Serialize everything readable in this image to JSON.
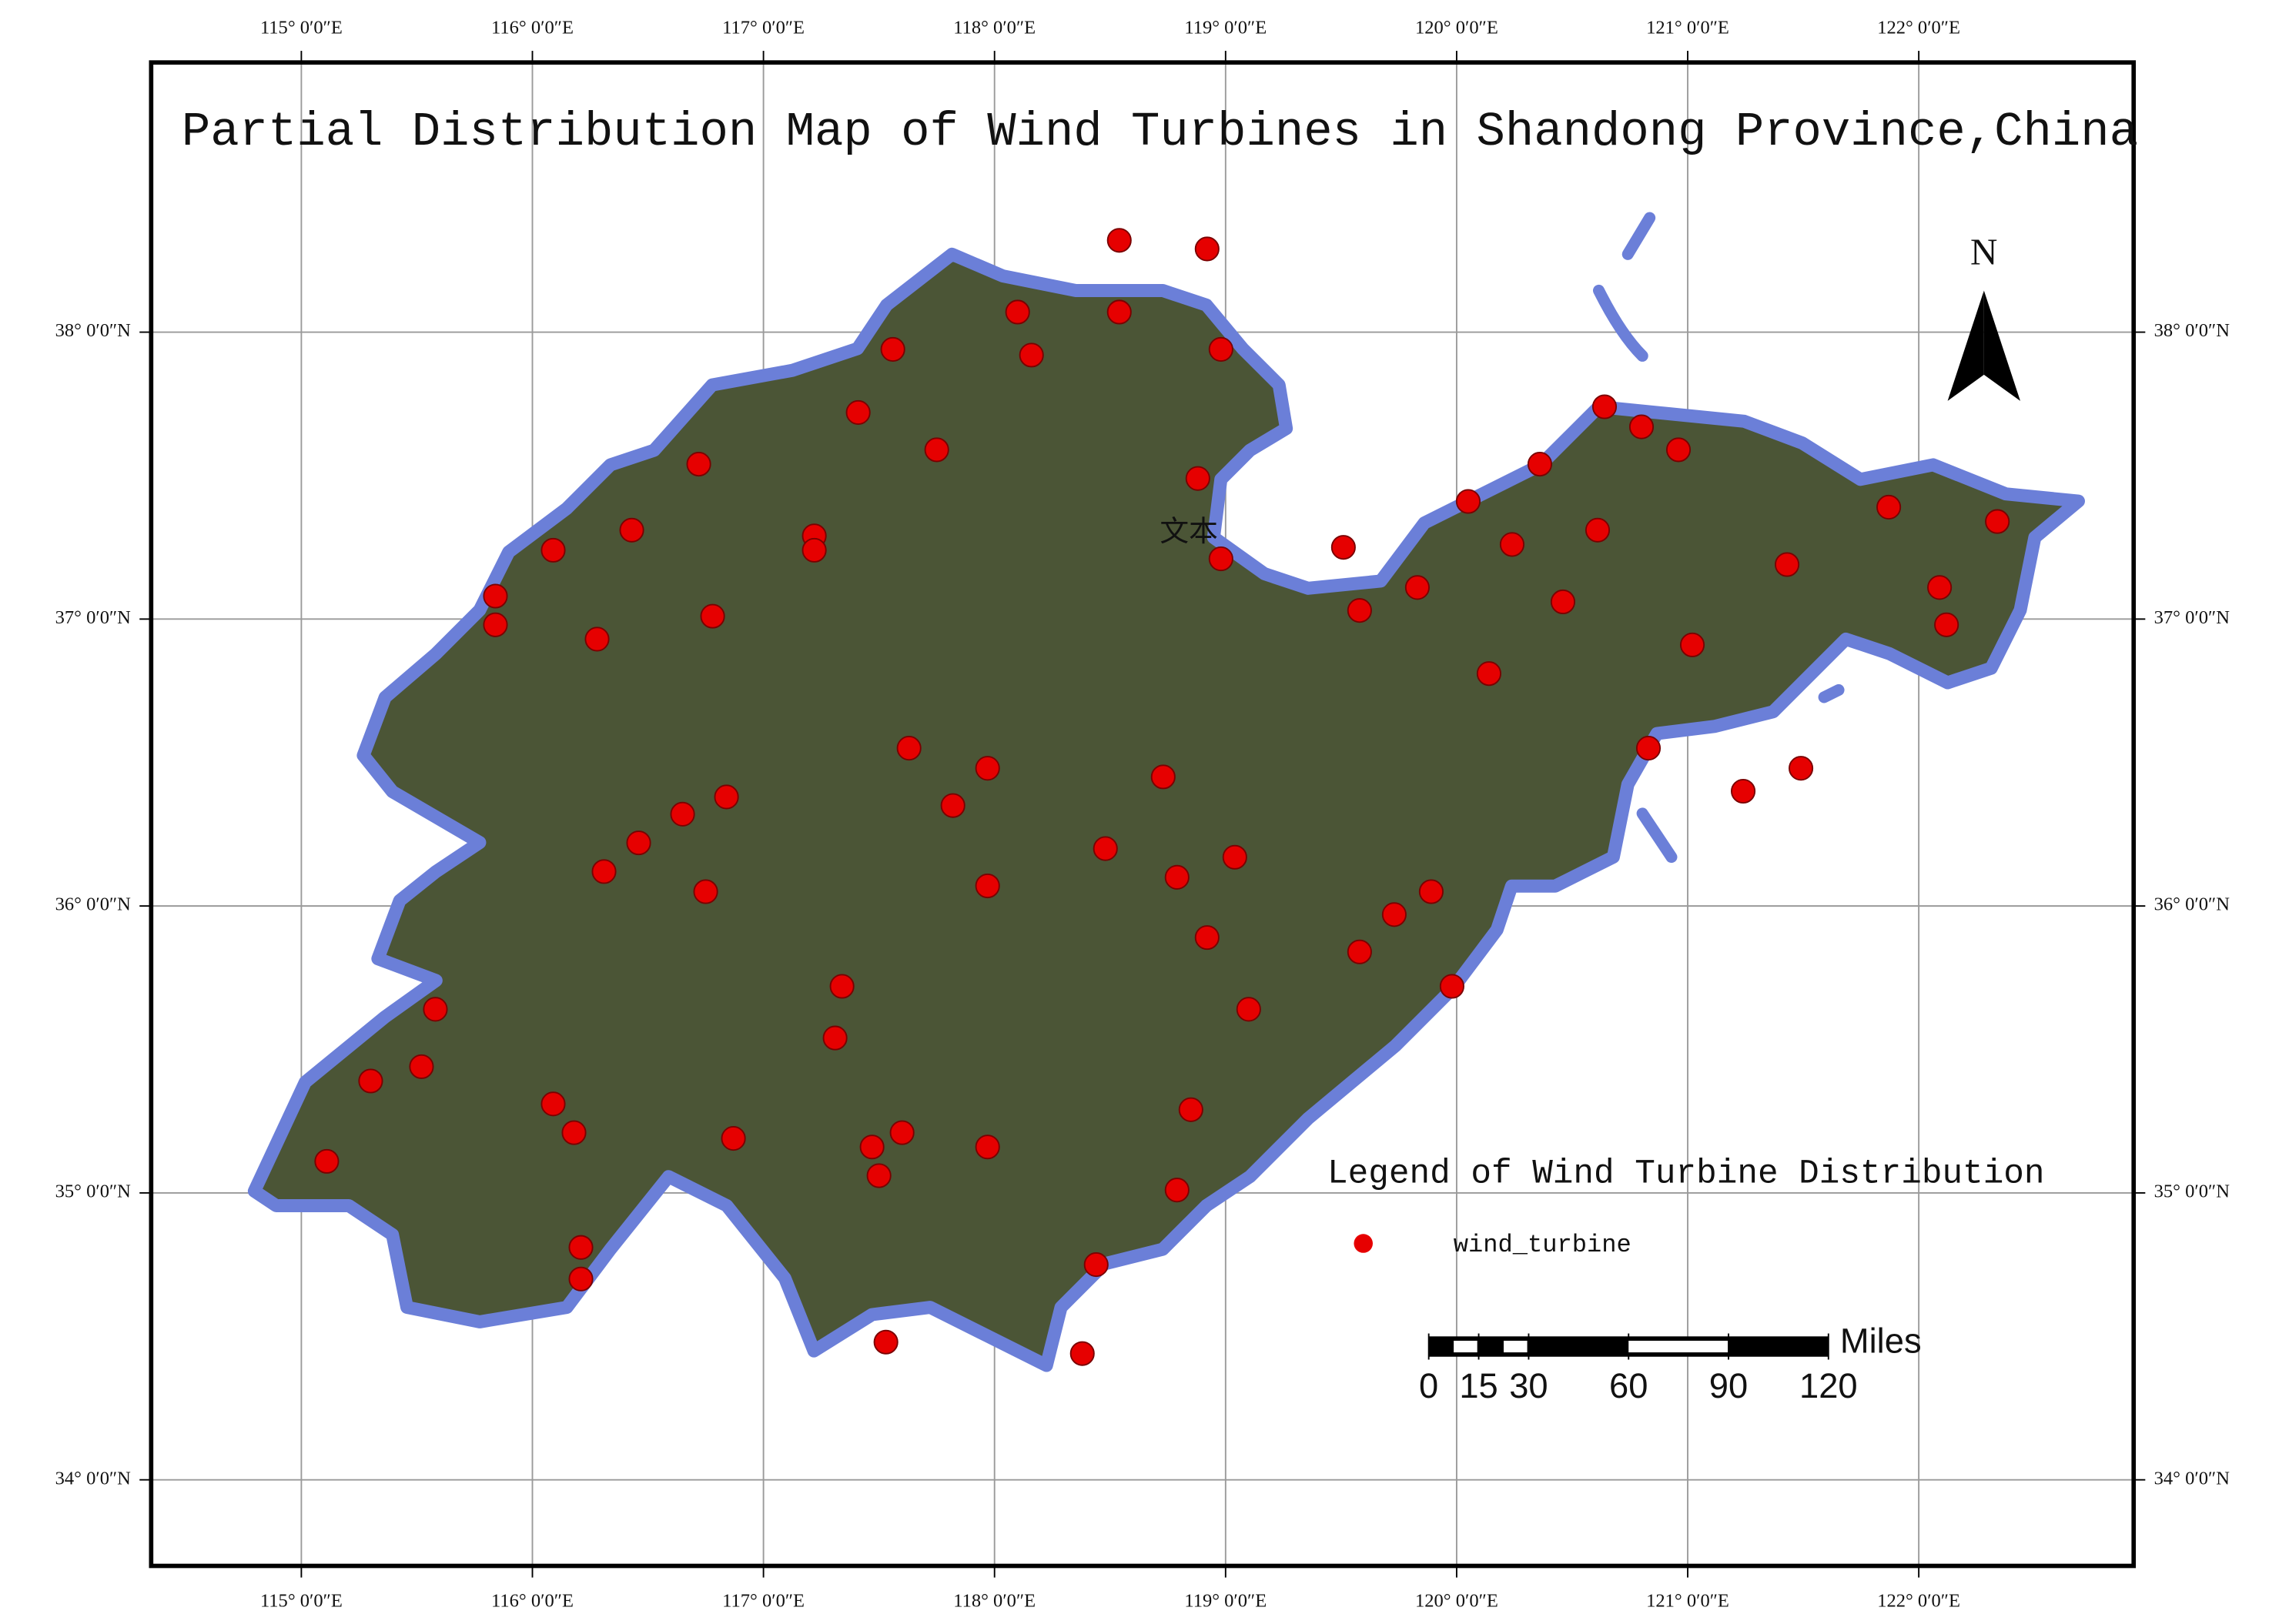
{
  "chart_data": {
    "type": "map",
    "title": "Partial Distribution Map of Wind Turbines in Shandong Province,China",
    "xlim": [
      114.35,
      122.93
    ],
    "ylim": [
      33.7,
      38.94
    ],
    "xticks": [
      {
        "value": 115,
        "label": "115° 0′0″E"
      },
      {
        "value": 116,
        "label": "116° 0′0″E"
      },
      {
        "value": 117,
        "label": "117° 0′0″E"
      },
      {
        "value": 118,
        "label": "118° 0′0″E"
      },
      {
        "value": 119,
        "label": "119° 0′0″E"
      },
      {
        "value": 120,
        "label": "120° 0′0″E"
      },
      {
        "value": 121,
        "label": "121° 0′0″E"
      },
      {
        "value": 122,
        "label": "122° 0′0″E"
      }
    ],
    "yticks": [
      {
        "value": 34,
        "label": "34° 0′0″N"
      },
      {
        "value": 35,
        "label": "35° 0′0″N"
      },
      {
        "value": 36,
        "label": "36° 0′0″N"
      },
      {
        "value": 37,
        "label": "37° 0′0″N"
      },
      {
        "value": 38,
        "label": "38° 0′0″N"
      }
    ],
    "grid": true,
    "north_label": "N",
    "map_label": "文本",
    "legend_title": "Legend of Wind Turbine Distribution",
    "series": [
      {
        "name": "wind_turbine",
        "color": "#e60000",
        "x": [
          115.84,
          116.09,
          116.28,
          116.72,
          116.43,
          116.78,
          117.22,
          117.41,
          117.56,
          117.75,
          118.1,
          118.16,
          118.54,
          118.98,
          118.54,
          118.92,
          118.88,
          118.98,
          119.51,
          119.58,
          119.83,
          120.05,
          120.24,
          120.36,
          120.64,
          120.61,
          120.96,
          120.46,
          120.14,
          121.02,
          121.43,
          121.87,
          122.09,
          122.34,
          122.12,
          120.83,
          121.24,
          121.49,
          117.63,
          117.97,
          117.82,
          118.73,
          118.48,
          118.79,
          119.04,
          118.92,
          119.1,
          119.73,
          119.89,
          119.58,
          119.98,
          117.34,
          117.31,
          116.31,
          116.46,
          116.65,
          116.75,
          116.84,
          115.58,
          115.3,
          115.11,
          115.52,
          116.09,
          116.18,
          116.21,
          116.21,
          116.87,
          117.5,
          117.6,
          117.47,
          117.97,
          118.85,
          118.79,
          117.53,
          118.38,
          118.44,
          117.97,
          115.84,
          117.22,
          120.8
        ],
        "values": [
          36.98,
          37.24,
          36.93,
          37.54,
          37.31,
          37.01,
          37.29,
          37.72,
          37.94,
          37.59,
          38.07,
          37.92,
          38.07,
          37.94,
          38.32,
          38.29,
          37.49,
          37.21,
          37.25,
          37.03,
          37.11,
          37.41,
          37.26,
          37.54,
          37.74,
          37.31,
          37.59,
          37.06,
          36.81,
          36.91,
          37.19,
          37.39,
          37.11,
          37.34,
          36.98,
          36.55,
          36.4,
          36.48,
          36.55,
          36.48,
          36.35,
          36.45,
          36.2,
          36.1,
          36.17,
          35.89,
          35.64,
          35.97,
          36.05,
          35.84,
          35.72,
          35.72,
          35.54,
          36.12,
          36.22,
          36.32,
          36.05,
          36.38,
          35.64,
          35.39,
          35.11,
          35.44,
          35.31,
          35.21,
          34.7,
          34.81,
          35.19,
          35.06,
          35.21,
          35.16,
          35.16,
          35.29,
          35.01,
          34.48,
          34.44,
          34.75,
          36.07,
          37.08,
          37.24,
          37.67
        ]
      }
    ],
    "scale_bar": {
      "unit": "Miles",
      "ticks": [
        0,
        15,
        30,
        60,
        90,
        120
      ]
    }
  }
}
